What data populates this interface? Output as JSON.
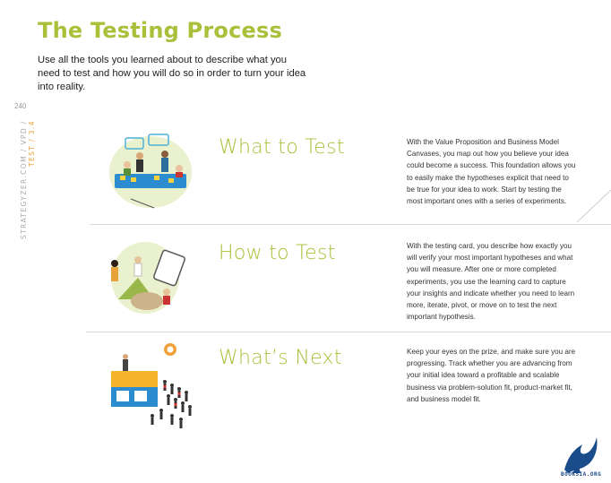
{
  "page": {
    "title": "The Testing Process",
    "intro": "Use all the tools you learned about to describe what you need to test and how you will do so in order to turn your idea into reality.",
    "page_number": "240",
    "side_label_main": "STRATEGYZER.COM / VPD / ",
    "side_label_highlight": "TEST / 3.4"
  },
  "sections": [
    {
      "title": "What to Test",
      "text": "With the Value Proposition and Business Model Canvases, you map out how you believe your idea could become a success. This foundation allows you to easily make the hypotheses explicit that need to be true for your idea to work. Start by testing the most important ones with a series of experiments."
    },
    {
      "title": "How to Test",
      "text": "With the testing card, you describe how exactly you will verify your most important hypotheses and what you will measure. After one or more completed experiments, you use the learning card to capture your insights and indicate whether you need to learn more, iterate, pivot, or move on to test the next important hypothesis."
    },
    {
      "title": "What’s Next",
      "text": "Keep your eyes on the prize, and make sure you are progressing. Track whether you are advancing from your initial idea toward a profitable and scalable business via problem-solution fit, product-market fit, and business model fit."
    }
  ],
  "logo": {
    "text": "BOOKSIA.ORG"
  },
  "colors": {
    "accent": "#a8c03a",
    "highlight": "#e8a23a",
    "logo": "#1a4c8c"
  }
}
